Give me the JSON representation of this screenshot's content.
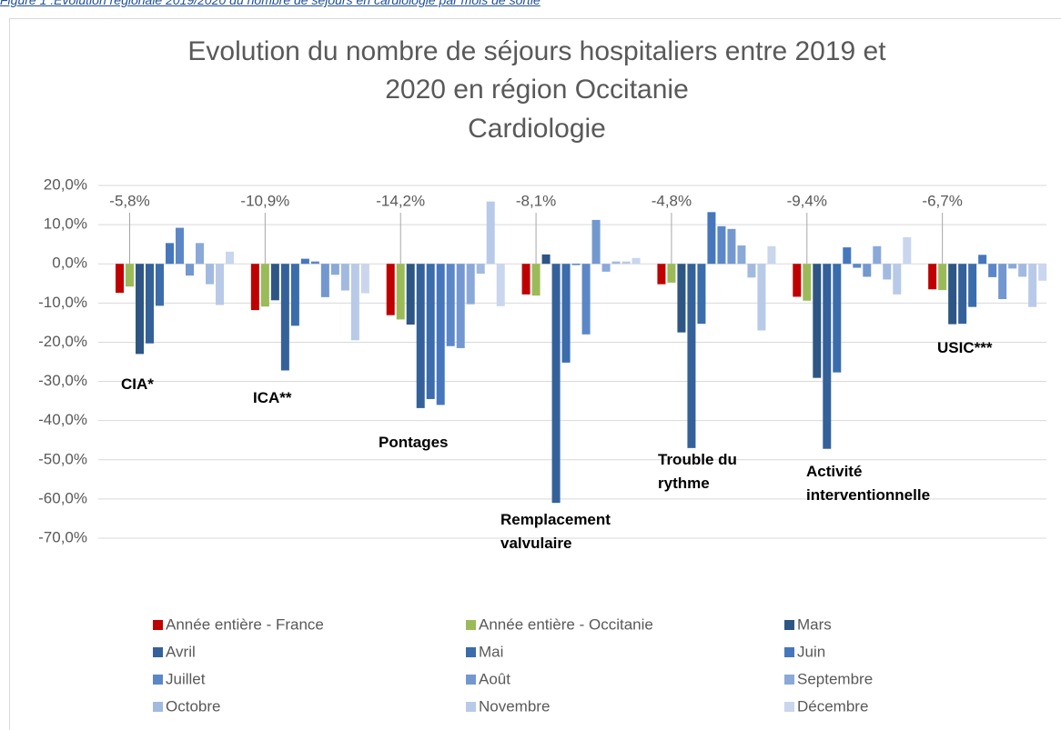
{
  "chart_data": {
    "type": "bar",
    "caption": "Figure 1 :Evolution régionale 2019/2020 du nombre de séjours en cardiologie par mois de sortie",
    "title": [
      "Evolution du nombre de séjours hospitaliers entre 2019 et",
      "2020 en région Occitanie",
      "Cardiologie"
    ],
    "categories": [
      "CIA*",
      "ICA**",
      "Pontages",
      "Remplacement valvulaire",
      "Trouble du rythme",
      "Activité interventionnelle",
      "USIC***"
    ],
    "series": [
      {
        "name": "Année entière - France",
        "color": "#c00000",
        "values": [
          -7.4,
          -11.8,
          -13.1,
          -7.8,
          -5.2,
          -8.4,
          -6.5
        ]
      },
      {
        "name": "Année entière - Occitanie",
        "color": "#9bbb59",
        "values": [
          -5.8,
          -10.9,
          -14.2,
          -8.1,
          -4.8,
          -9.4,
          -6.7
        ],
        "value_labels": [
          "-5,8%",
          "-10,9%",
          "-14,2%",
          "-8,1%",
          "-4,8%",
          "-9,4%",
          "-6,7%"
        ]
      },
      {
        "name": "Mars",
        "color": "#2e5684",
        "values": [
          -23,
          -9.3,
          -15.5,
          2.4,
          -17.5,
          -29.1,
          -15.4
        ]
      },
      {
        "name": "Avril",
        "color": "#34619a",
        "values": [
          -20.3,
          -27.2,
          -36.8,
          -61,
          -47,
          -47.2,
          -15.3
        ]
      },
      {
        "name": "Mai",
        "color": "#3b6cab",
        "values": [
          -10.7,
          -15.8,
          -34.5,
          -25.2,
          -15.3,
          -27.7,
          -11
        ]
      },
      {
        "name": "Juin",
        "color": "#4677bd",
        "values": [
          5.3,
          1.3,
          -36,
          -0.3,
          13.2,
          4.2,
          2.3
        ]
      },
      {
        "name": "Juillet",
        "color": "#5b87c8",
        "values": [
          9.2,
          0.6,
          -21,
          -18,
          9.6,
          -1,
          -3.4
        ]
      },
      {
        "name": "Août",
        "color": "#7398d0",
        "values": [
          -3,
          -8.5,
          -21.5,
          11.2,
          8.9,
          -3.3,
          -9
        ]
      },
      {
        "name": "Septembre",
        "color": "#8aa9d8",
        "values": [
          5.3,
          -2.8,
          -10.3,
          -2,
          4.7,
          4.5,
          -1.2
        ]
      },
      {
        "name": "Octobre",
        "color": "#a2badf",
        "values": [
          -5.2,
          -6.8,
          -2.5,
          0.6,
          -3.5,
          -4,
          -3.3
        ]
      },
      {
        "name": "Novembre",
        "color": "#b8cae7",
        "values": [
          -10.5,
          -19.5,
          15.9,
          0.6,
          -17,
          -7.8,
          -11
        ]
      },
      {
        "name": "Décembre",
        "color": "#c9d6ed",
        "values": [
          3.1,
          -7.5,
          -10.8,
          1.5,
          4.5,
          6.8,
          -4.3
        ]
      }
    ],
    "ylim": [
      -70,
      20
    ],
    "yticks": [
      {
        "value": -70,
        "label": "-70,0%"
      },
      {
        "value": -60,
        "label": "-60,0%"
      },
      {
        "value": -50,
        "label": "-50,0%"
      },
      {
        "value": -40,
        "label": "-40,0%"
      },
      {
        "value": -30,
        "label": "-30,0%"
      },
      {
        "value": -20,
        "label": "-20,0%"
      },
      {
        "value": -10,
        "label": "-10,0%"
      },
      {
        "value": 0,
        "label": "0,0%"
      },
      {
        "value": 10,
        "label": "10,0%"
      },
      {
        "value": 20,
        "label": "20,0%"
      }
    ],
    "grid": true,
    "legend": "bottom"
  }
}
